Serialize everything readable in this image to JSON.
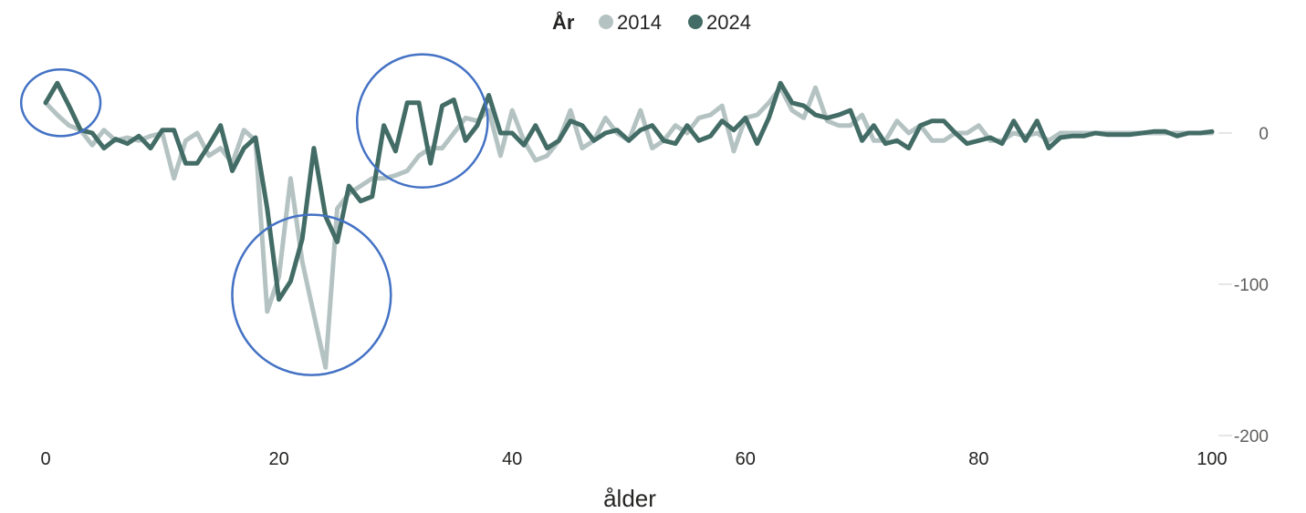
{
  "chart_data": {
    "type": "line",
    "xlabel": "ålder",
    "ylabel": "",
    "xlim": [
      0,
      100
    ],
    "ylim": [
      -200,
      40
    ],
    "x_ticks": [
      0,
      20,
      40,
      60,
      80,
      100
    ],
    "y_ticks": [
      0,
      -100,
      -200
    ],
    "y_axis_side": "right",
    "grid": false,
    "legend": {
      "title": "År",
      "position": "top-center"
    },
    "series": [
      {
        "name": "2014",
        "color": "#b4c3c2",
        "x": [
          0,
          1,
          2,
          3,
          4,
          5,
          6,
          7,
          8,
          9,
          10,
          11,
          12,
          13,
          14,
          15,
          16,
          17,
          18,
          19,
          20,
          21,
          22,
          23,
          24,
          25,
          26,
          27,
          28,
          29,
          30,
          31,
          32,
          33,
          34,
          35,
          36,
          37,
          38,
          39,
          40,
          41,
          42,
          43,
          44,
          45,
          46,
          47,
          48,
          49,
          50,
          51,
          52,
          53,
          54,
          55,
          56,
          57,
          58,
          59,
          60,
          61,
          62,
          63,
          64,
          65,
          66,
          67,
          68,
          69,
          70,
          71,
          72,
          73,
          74,
          75,
          76,
          77,
          78,
          79,
          80,
          81,
          82,
          83,
          84,
          85,
          86,
          87,
          88,
          89,
          90,
          91,
          92,
          93,
          94,
          95,
          96,
          97,
          98,
          99,
          100
        ],
        "values": [
          20,
          12,
          5,
          2,
          -8,
          2,
          -5,
          -3,
          -5,
          -2,
          0,
          -30,
          -5,
          0,
          -15,
          -10,
          -20,
          2,
          -5,
          -118,
          -95,
          -30,
          -85,
          -120,
          -155,
          -50,
          -40,
          -35,
          -30,
          -30,
          -28,
          -25,
          -15,
          -10,
          -10,
          0,
          10,
          8,
          15,
          -15,
          15,
          -5,
          -18,
          -15,
          -5,
          15,
          -10,
          -5,
          10,
          0,
          -5,
          15,
          -10,
          -5,
          5,
          0,
          10,
          12,
          18,
          -12,
          10,
          12,
          20,
          30,
          15,
          10,
          30,
          8,
          5,
          5,
          12,
          -5,
          -5,
          8,
          0,
          5,
          -5,
          -5,
          0,
          0,
          5,
          -5,
          -5,
          0,
          -2,
          0,
          -5,
          0,
          0,
          0,
          0,
          0,
          0,
          0,
          0,
          0,
          0,
          0,
          0,
          0,
          0
        ]
      },
      {
        "name": "2024",
        "color": "#426c65",
        "x": [
          0,
          1,
          2,
          3,
          4,
          5,
          6,
          7,
          8,
          9,
          10,
          11,
          12,
          13,
          14,
          15,
          16,
          17,
          18,
          19,
          20,
          21,
          22,
          23,
          24,
          25,
          26,
          27,
          28,
          29,
          30,
          31,
          32,
          33,
          34,
          35,
          36,
          37,
          38,
          39,
          40,
          41,
          42,
          43,
          44,
          45,
          46,
          47,
          48,
          49,
          50,
          51,
          52,
          53,
          54,
          55,
          56,
          57,
          58,
          59,
          60,
          61,
          62,
          63,
          64,
          65,
          66,
          67,
          68,
          69,
          70,
          71,
          72,
          73,
          74,
          75,
          76,
          77,
          78,
          79,
          80,
          81,
          82,
          83,
          84,
          85,
          86,
          87,
          88,
          89,
          90,
          91,
          92,
          93,
          94,
          95,
          96,
          97,
          98,
          99,
          100
        ],
        "values": [
          20,
          33,
          18,
          2,
          0,
          -10,
          -4,
          -7,
          -2,
          -10,
          2,
          2,
          -20,
          -20,
          -8,
          5,
          -25,
          -10,
          -3,
          -50,
          -110,
          -98,
          -70,
          -10,
          -55,
          -72,
          -35,
          -45,
          -42,
          5,
          -12,
          20,
          20,
          -20,
          18,
          22,
          -5,
          5,
          25,
          0,
          0,
          -8,
          5,
          -10,
          -5,
          8,
          5,
          -5,
          0,
          2,
          -5,
          2,
          5,
          -5,
          -7,
          5,
          -5,
          -2,
          8,
          2,
          10,
          -7,
          10,
          33,
          20,
          18,
          12,
          10,
          12,
          15,
          -5,
          5,
          -7,
          -5,
          -10,
          5,
          8,
          8,
          0,
          -7,
          -5,
          -3,
          -7,
          8,
          -5,
          8,
          -10,
          -3,
          -2,
          -2,
          0,
          -1,
          -1,
          -1,
          0,
          1,
          1,
          -2,
          0,
          0,
          1
        ]
      }
    ],
    "annotations": [
      {
        "shape": "ellipse",
        "stroke": "#4472c4",
        "cx": 1.3,
        "cy": 20,
        "rx": 3.4,
        "ry": 22
      },
      {
        "shape": "ellipse",
        "stroke": "#4472c4",
        "cx": 22.8,
        "cy": -107,
        "rx": 6.8,
        "ry": 53
      },
      {
        "shape": "ellipse",
        "stroke": "#4472c4",
        "cx": 32.3,
        "cy": 8,
        "rx": 5.6,
        "ry": 44
      }
    ]
  }
}
